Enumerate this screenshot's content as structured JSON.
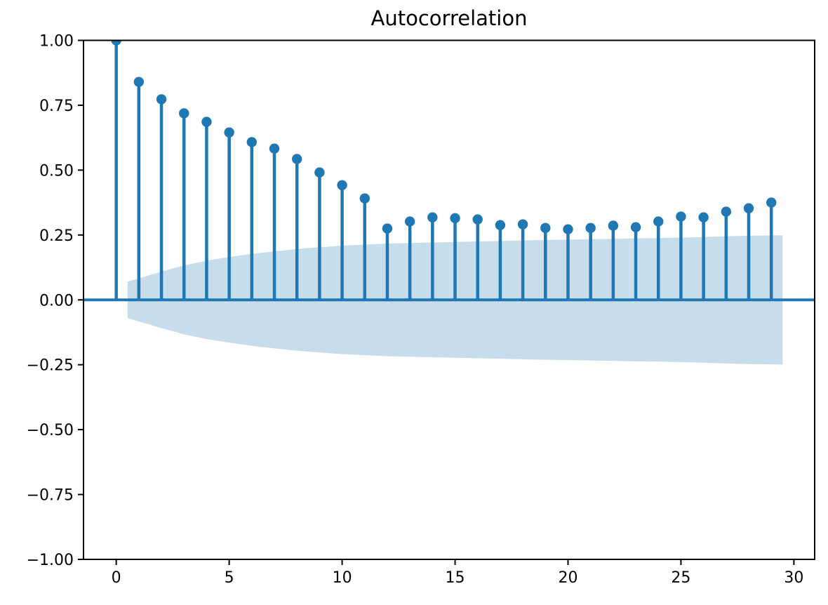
{
  "chart_data": {
    "type": "stem",
    "title": "Autocorrelation",
    "xlabel": "",
    "ylabel": "",
    "x": [
      0,
      1,
      2,
      3,
      4,
      5,
      6,
      7,
      8,
      9,
      10,
      11,
      12,
      13,
      14,
      15,
      16,
      17,
      18,
      19,
      20,
      21,
      22,
      23,
      24,
      25,
      26,
      27,
      28,
      29
    ],
    "acf": [
      1.0,
      0.84,
      0.773,
      0.719,
      0.686,
      0.645,
      0.608,
      0.583,
      0.543,
      0.491,
      0.442,
      0.391,
      0.275,
      0.302,
      0.318,
      0.315,
      0.31,
      0.288,
      0.291,
      0.277,
      0.272,
      0.277,
      0.286,
      0.28,
      0.302,
      0.321,
      0.318,
      0.34,
      0.353,
      0.375
    ],
    "conf_band": {
      "x_start": 0.5,
      "x_end": 29.5,
      "lags": [
        1,
        2,
        3,
        4,
        5,
        6,
        7,
        8,
        9,
        10,
        11,
        12,
        13,
        14,
        15,
        16,
        17,
        18,
        19,
        20,
        21,
        22,
        23,
        24,
        25,
        26,
        27,
        28,
        29
      ],
      "upper": [
        0.07,
        0.109,
        0.133,
        0.151,
        0.165,
        0.177,
        0.187,
        0.196,
        0.203,
        0.209,
        0.213,
        0.217,
        0.219,
        0.221,
        0.223,
        0.225,
        0.227,
        0.229,
        0.231,
        0.232,
        0.234,
        0.235,
        0.237,
        0.238,
        0.24,
        0.242,
        0.245,
        0.247,
        0.249
      ],
      "lower": [
        -0.07,
        -0.109,
        -0.133,
        -0.151,
        -0.165,
        -0.177,
        -0.187,
        -0.196,
        -0.203,
        -0.209,
        -0.213,
        -0.217,
        -0.219,
        -0.221,
        -0.223,
        -0.225,
        -0.227,
        -0.229,
        -0.231,
        -0.232,
        -0.234,
        -0.235,
        -0.237,
        -0.238,
        -0.24,
        -0.242,
        -0.245,
        -0.247,
        -0.249
      ]
    },
    "xlim": [
      -1.45,
      30.92
    ],
    "ylim": [
      -1.0,
      1.0
    ],
    "xticks": {
      "values": [
        0,
        5,
        10,
        15,
        20,
        25,
        30
      ],
      "labels": [
        "0",
        "5",
        "10",
        "15",
        "20",
        "25",
        "30"
      ]
    },
    "yticks": {
      "values": [
        1.0,
        0.75,
        0.5,
        0.25,
        0.0,
        -0.25,
        -0.5,
        -0.75,
        -1.0
      ],
      "labels": [
        "1.00",
        "0.75",
        "0.50",
        "0.25",
        "0.00",
        "−0.25",
        "−0.50",
        "−0.75",
        "−1.00"
      ]
    },
    "grid": false,
    "legend": "none",
    "colors": {
      "stem": "#1f77b4",
      "marker": "#1f77b4",
      "zero_line": "#1f77b4",
      "band_fill": "#1f77b4",
      "band_opacity": 0.25,
      "spine": "#000000",
      "tick_text": "#000000",
      "background": "#ffffff"
    }
  }
}
